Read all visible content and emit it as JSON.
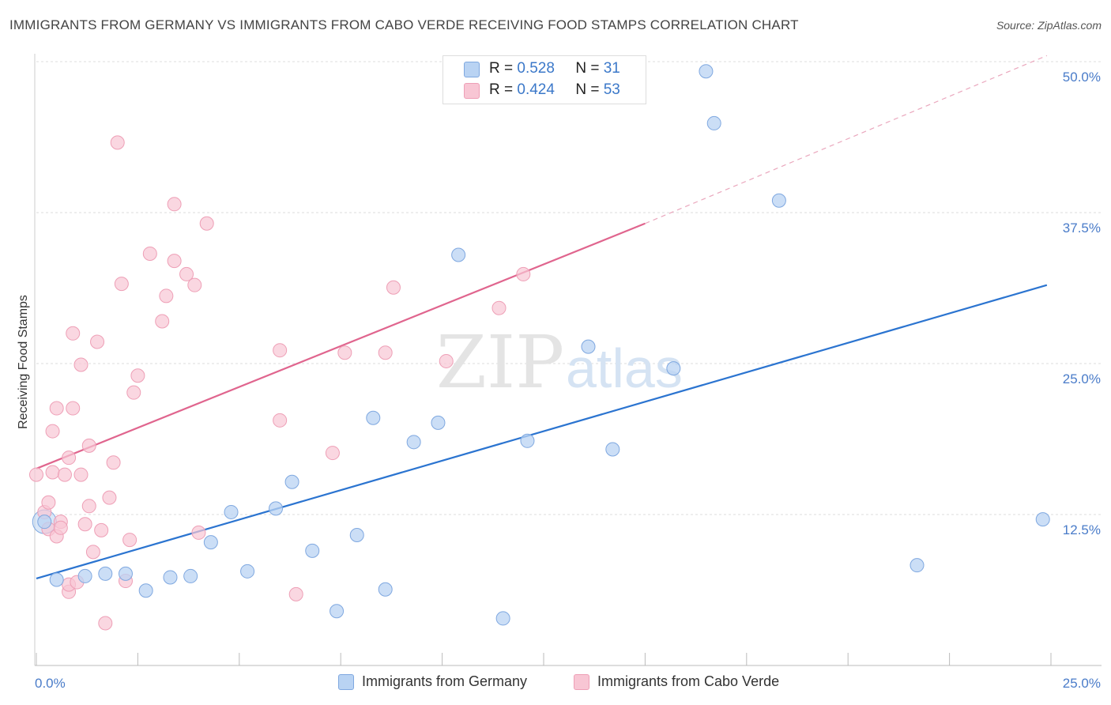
{
  "title": "IMMIGRANTS FROM GERMANY VS IMMIGRANTS FROM CABO VERDE RECEIVING FOOD STAMPS CORRELATION CHART",
  "source": "Source: ZipAtlas.com",
  "watermark": {
    "zip": "ZIP",
    "atlas": "atlas"
  },
  "colors": {
    "germany_fill": "#b9d3f3",
    "germany_stroke": "#7fa8e0",
    "germany_line": "#2b74d0",
    "caboverde_fill": "#f8c6d4",
    "caboverde_stroke": "#ee9fb6",
    "caboverde_line": "#e0658e",
    "tick_text": "#4a7cc9",
    "grid": "#dddddd"
  },
  "legend": {
    "rows": [
      {
        "r_label": "R =",
        "r_value": "0.528",
        "n_label": "N =",
        "n_value": "31"
      },
      {
        "r_label": "R =",
        "r_value": "0.424",
        "n_label": "N =",
        "n_value": "53"
      }
    ]
  },
  "chart_data": {
    "type": "scatter",
    "title": "IMMIGRANTS FROM GERMANY VS IMMIGRANTS FROM CABO VERDE RECEIVING FOOD STAMPS CORRELATION CHART",
    "xlabel": "",
    "ylabel": "Receiving Food Stamps",
    "xlim": [
      0,
      25
    ],
    "ylim": [
      0,
      50
    ],
    "x_tick_labels": [
      "0.0%",
      "25.0%"
    ],
    "y_ticks": [
      12.5,
      25.0,
      37.5,
      50.0
    ],
    "y_tick_labels": [
      "12.5%",
      "25.0%",
      "37.5%",
      "50.0%"
    ],
    "grid": true,
    "series": [
      {
        "name": "Immigrants from Germany",
        "R": 0.528,
        "N": 31,
        "points": [
          [
            0.2,
            11.9
          ],
          [
            1.2,
            7.4
          ],
          [
            1.7,
            7.6
          ],
          [
            2.2,
            7.6
          ],
          [
            2.7,
            6.2
          ],
          [
            3.3,
            7.3
          ],
          [
            3.8,
            7.4
          ],
          [
            4.3,
            10.2
          ],
          [
            4.8,
            12.7
          ],
          [
            5.2,
            7.8
          ],
          [
            5.9,
            13.0
          ],
          [
            6.3,
            15.2
          ],
          [
            6.8,
            9.5
          ],
          [
            7.4,
            4.5
          ],
          [
            7.9,
            10.8
          ],
          [
            8.3,
            20.5
          ],
          [
            8.6,
            6.3
          ],
          [
            9.3,
            18.5
          ],
          [
            9.9,
            20.1
          ],
          [
            10.4,
            34.0
          ],
          [
            11.5,
            3.9
          ],
          [
            12.1,
            18.6
          ],
          [
            13.6,
            26.4
          ],
          [
            14.2,
            17.9
          ],
          [
            15.7,
            24.6
          ],
          [
            16.5,
            49.2
          ],
          [
            16.7,
            44.9
          ],
          [
            18.3,
            38.5
          ],
          [
            21.7,
            8.3
          ],
          [
            24.8,
            12.1
          ],
          [
            0.5,
            7.1
          ]
        ],
        "trend": {
          "x": [
            0,
            24.9
          ],
          "y": [
            7.2,
            31.5
          ]
        }
      },
      {
        "name": "Immigrants from Cabo Verde",
        "R": 0.424,
        "N": 53,
        "points": [
          [
            0.0,
            15.8
          ],
          [
            0.2,
            12.7
          ],
          [
            0.3,
            11.3
          ],
          [
            0.3,
            13.5
          ],
          [
            0.4,
            16.0
          ],
          [
            0.4,
            19.4
          ],
          [
            0.5,
            10.7
          ],
          [
            0.5,
            21.3
          ],
          [
            0.6,
            11.9
          ],
          [
            0.6,
            11.4
          ],
          [
            0.7,
            15.8
          ],
          [
            0.8,
            6.1
          ],
          [
            0.8,
            17.2
          ],
          [
            0.8,
            6.7
          ],
          [
            0.9,
            27.5
          ],
          [
            0.9,
            21.3
          ],
          [
            1.0,
            6.9
          ],
          [
            1.1,
            24.9
          ],
          [
            1.1,
            15.8
          ],
          [
            1.2,
            11.7
          ],
          [
            1.3,
            13.2
          ],
          [
            1.3,
            18.2
          ],
          [
            1.4,
            9.4
          ],
          [
            1.5,
            26.8
          ],
          [
            1.6,
            11.2
          ],
          [
            1.7,
            3.5
          ],
          [
            1.8,
            13.9
          ],
          [
            1.9,
            16.8
          ],
          [
            2.0,
            43.3
          ],
          [
            2.1,
            31.6
          ],
          [
            2.2,
            7.0
          ],
          [
            2.3,
            10.4
          ],
          [
            2.4,
            22.6
          ],
          [
            2.5,
            24.0
          ],
          [
            2.8,
            34.1
          ],
          [
            3.1,
            28.5
          ],
          [
            3.2,
            30.6
          ],
          [
            3.4,
            33.5
          ],
          [
            3.4,
            38.2
          ],
          [
            3.7,
            32.4
          ],
          [
            3.9,
            31.5
          ],
          [
            4.0,
            11.0
          ],
          [
            4.2,
            36.6
          ],
          [
            6.0,
            26.1
          ],
          [
            6.0,
            20.3
          ],
          [
            6.4,
            5.9
          ],
          [
            7.3,
            17.6
          ],
          [
            7.6,
            25.9
          ],
          [
            8.6,
            25.9
          ],
          [
            8.8,
            31.3
          ],
          [
            10.1,
            25.2
          ],
          [
            11.4,
            29.6
          ],
          [
            12.0,
            32.4
          ]
        ],
        "trend": {
          "x": [
            0,
            15.0
          ],
          "y": [
            16.3,
            36.6
          ]
        },
        "trend_extension": {
          "x": [
            15.0,
            24.9
          ],
          "y": [
            36.6,
            50.5
          ]
        }
      }
    ]
  },
  "bottom_legend": [
    "Immigrants from Germany",
    "Immigrants from Cabo Verde"
  ]
}
